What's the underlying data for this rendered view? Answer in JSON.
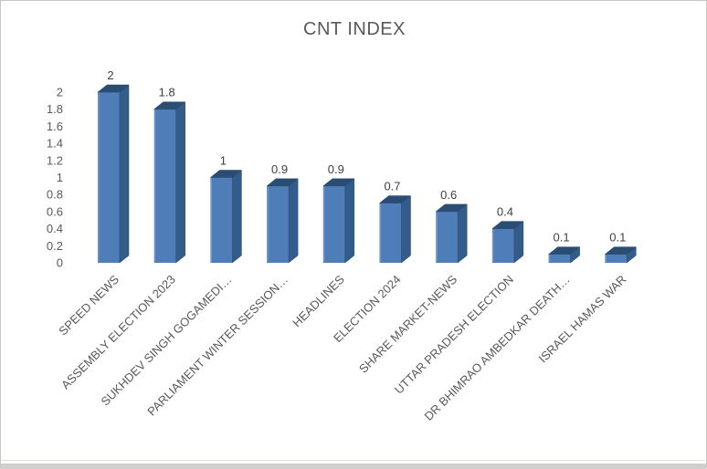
{
  "window": {
    "background": "#ffffff",
    "border_color": "#c9c7c5",
    "bottom_divider_color": "#e2e0de",
    "bottom_strip_color": "#d0cfcd"
  },
  "chart_data": {
    "type": "bar",
    "style": "3d-column",
    "title": "CNT INDEX",
    "categories": [
      "SPEED NEWS",
      "ASSEMBLY ELECTION 2023",
      "SUKHDEV SINGH GOGAMEDI…",
      "PARLIAMENT WINTER SESSION…",
      "HEADLINES",
      "ELECTION 2024",
      "SHARE MARKET-NEWS",
      "UTTAR PRADESH ELECTION",
      "DR BHIMRAO AMBEDKAR DEATH…",
      "ISRAEL HAMAS WAR"
    ],
    "values": [
      2,
      1.8,
      1,
      0.9,
      0.9,
      0.7,
      0.6,
      0.4,
      0.1,
      0.1
    ],
    "data_labels": [
      "2",
      "1.8",
      "1",
      "0.9",
      "0.9",
      "0.7",
      "0.6",
      "0.4",
      "0.1",
      "0.1"
    ],
    "y_ticks": [
      "2",
      "1.8",
      "1.6",
      "1.4",
      "1.2",
      "1",
      "0.8",
      "0.6",
      "0.4",
      "0.2",
      "0"
    ],
    "ylim": [
      0,
      2
    ],
    "xlabel": "",
    "ylabel": "",
    "grid": false,
    "legend": "none",
    "colors": {
      "bar_front": "#4E7DB8",
      "bar_side": "#335C8A",
      "bar_top": "#2B4D74",
      "bar_highlight": "#7BA1D0",
      "title": "#595959",
      "axis_text": "#595959",
      "data_label": "#404040",
      "category_text": "#595959"
    }
  }
}
